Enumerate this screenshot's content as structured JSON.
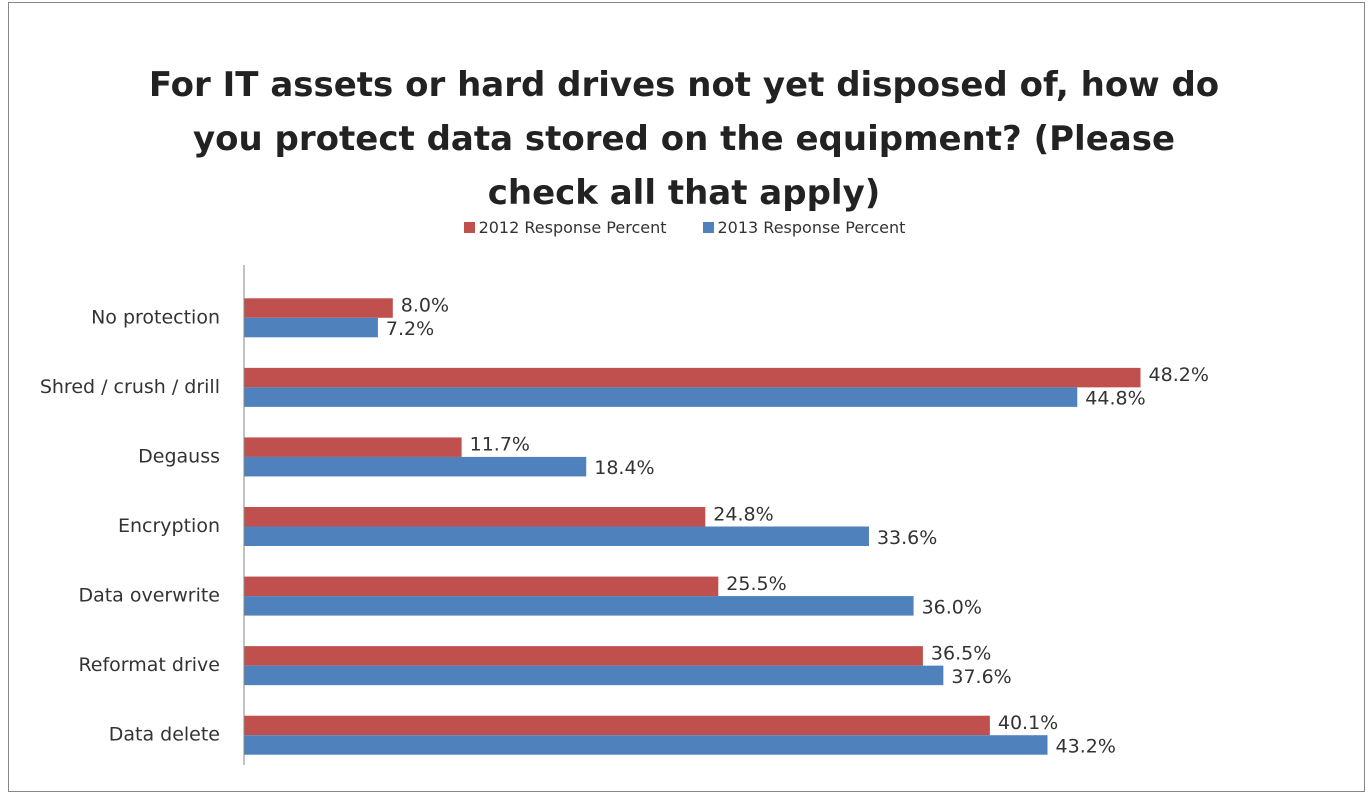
{
  "chart_data": {
    "type": "hbar",
    "title": "For IT assets or hard drives not yet disposed of, how do you protect data stored on the equipment? (Please check all that apply)",
    "categories": [
      "No protection",
      "Shred / crush / drill",
      "Degauss",
      "Encryption",
      "Data overwrite",
      "Reformat drive",
      "Data delete"
    ],
    "series": [
      {
        "name": "2012 Response Percent",
        "color": "#c0504d",
        "values": [
          8.0,
          48.2,
          11.7,
          24.8,
          25.5,
          36.5,
          40.1
        ],
        "value_labels": [
          "8.0%",
          "48.2%",
          "11.7%",
          "24.8%",
          "25.5%",
          "36.5%",
          "40.1%"
        ]
      },
      {
        "name": "2013 Response Percent",
        "color": "#4f81bd",
        "values": [
          7.2,
          44.8,
          18.4,
          33.6,
          36.0,
          37.6,
          43.2
        ],
        "value_labels": [
          "7.2%",
          "44.8%",
          "18.4%",
          "33.6%",
          "36.0%",
          "37.6%",
          "43.2%"
        ]
      }
    ],
    "xlim": [
      0,
      50
    ],
    "legend": "top"
  }
}
